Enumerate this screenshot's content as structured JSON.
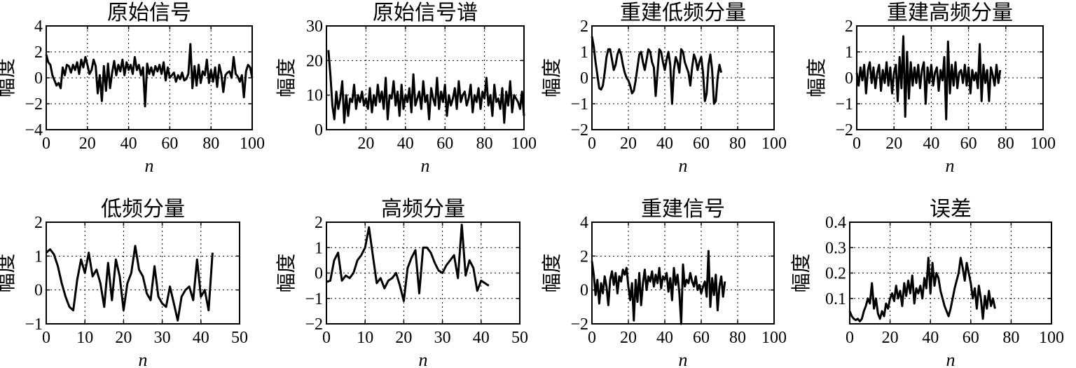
{
  "chart_data": [
    {
      "type": "line",
      "title": "原始信号",
      "xlabel": "n",
      "ylabel": "幅度",
      "xlim": [
        0,
        100
      ],
      "ylim": [
        -4,
        4
      ],
      "xticks": [
        "0",
        "20",
        "40",
        "60",
        "80",
        "100"
      ],
      "yticks": [
        "4",
        "2",
        "0",
        "−2",
        "−4"
      ],
      "grid": true,
      "x_start": 0,
      "values": [
        1.8,
        1.2,
        1.0,
        0.2,
        -0.2,
        -0.6,
        -0.4,
        -0.8,
        0.8,
        0.2,
        1.0,
        0.9,
        0.4,
        1.0,
        0.6,
        1.2,
        0.3,
        1.4,
        0.8,
        1.6,
        1.0,
        0.3,
        0.6,
        1.4,
        0.9,
        -1.2,
        0.2,
        -1.8,
        0.9,
        -1.0,
        1.1,
        -0.8,
        0.4,
        1.3,
        0.2,
        1.0,
        0.5,
        1.4,
        0.2,
        1.2,
        0.6,
        1.0,
        0.3,
        1.6,
        0.6,
        1.0,
        0.2,
        0.8,
        -2.2,
        1.1,
        0.3,
        0.8,
        0.2,
        0.9,
        0.5,
        1.0,
        0.3,
        1.2,
        -0.2,
        0.8,
        0.0,
        0.2,
        0.4,
        -0.3,
        0.2,
        -0.1,
        0.4,
        -0.2,
        -0.1,
        0.3,
        2.6,
        -0.8,
        0.9,
        -0.6,
        1.0,
        -0.4,
        0.5,
        0.2,
        1.4,
        -0.4,
        0.6,
        -0.3,
        0.8,
        -0.7,
        1.0,
        0.3,
        -1.1,
        0.2,
        0.4,
        0.5,
        0.0,
        1.6,
        0.3,
        0.1,
        -0.3,
        0.2,
        -1.5,
        0.5,
        1.0,
        0.8,
        0.0
      ]
    },
    {
      "type": "line",
      "title": "原始信号谱",
      "xlabel": "n",
      "ylabel": "幅度",
      "xlim": [
        0,
        100
      ],
      "ylim": [
        0,
        30
      ],
      "xticks": [
        "20",
        "40",
        "60",
        "80",
        "100"
      ],
      "yticks": [
        "30",
        "20",
        "10",
        "0"
      ],
      "grid": true,
      "x_start": 1,
      "values": [
        23,
        16,
        7,
        3,
        11,
        6,
        9,
        14,
        2,
        10,
        4,
        9,
        8,
        13,
        6,
        10,
        8,
        11,
        7,
        9,
        6,
        12,
        5,
        10,
        7,
        13,
        8,
        11,
        6,
        15,
        3,
        10,
        9,
        14,
        7,
        11,
        4,
        13,
        6,
        10,
        8,
        12,
        5,
        16,
        7,
        9,
        11,
        6,
        14,
        8,
        10,
        3,
        12,
        9,
        7,
        15,
        6,
        11,
        8,
        13,
        4,
        10,
        7,
        9,
        12,
        6,
        14,
        8,
        10,
        11,
        7,
        9,
        13,
        5,
        10,
        8,
        12,
        6,
        11,
        9,
        15,
        7,
        10,
        4,
        13,
        8,
        9,
        6,
        12,
        2,
        11,
        7,
        14,
        5,
        10,
        9,
        8,
        6,
        11,
        4
      ]
    },
    {
      "type": "line",
      "title": "重建低频分量",
      "xlabel": "n",
      "ylabel": "幅度",
      "xlim": [
        0,
        100
      ],
      "ylim": [
        -2,
        2
      ],
      "xticks": [
        "0",
        "20",
        "40",
        "60",
        "80",
        "100"
      ],
      "yticks": [
        "2",
        "1",
        "0",
        "−1",
        "−2"
      ],
      "grid": true,
      "x_start": 0,
      "values": [
        1.6,
        1.2,
        0.6,
        0.1,
        -0.4,
        -0.45,
        -0.3,
        0.2,
        0.8,
        1.1,
        1.1,
        0.7,
        0.3,
        0.5,
        0.9,
        1.1,
        0.9,
        0.5,
        0.2,
        0.0,
        -0.1,
        -0.3,
        -0.6,
        -0.5,
        -0.1,
        0.4,
        0.9,
        1.0,
        0.6,
        0.3,
        0.7,
        1.1,
        1.0,
        0.6,
        0.4,
        -0.7,
        0.2,
        1.1,
        1.0,
        0.6,
        0.3,
        0.7,
        1.0,
        0.5,
        -1.0,
        0.3,
        0.8,
        0.6,
        0.2,
        1.1,
        1.0,
        0.6,
        0.4,
        0.2,
        -0.3,
        0.4,
        0.9,
        0.7,
        0.3,
        0.6,
        0.8,
        0.2,
        -0.9,
        -0.6,
        0.5,
        0.9,
        0.3,
        -1.0,
        -0.9,
        0.0,
        0.5,
        0.2
      ]
    },
    {
      "type": "line",
      "title": "重建高频分量",
      "xlabel": "n",
      "ylabel": "幅度",
      "xlim": [
        0,
        100
      ],
      "ylim": [
        -2,
        2
      ],
      "xticks": [
        "0",
        "20",
        "40",
        "60",
        "80",
        "100"
      ],
      "yticks": [
        "2",
        "1",
        "0",
        "−1",
        "−2"
      ],
      "grid": true,
      "x_start": 0,
      "values": [
        0.2,
        -0.3,
        0.4,
        -0.1,
        0.5,
        -0.6,
        0.3,
        0.6,
        -0.2,
        0.4,
        -0.4,
        0.2,
        0.5,
        -0.5,
        0.3,
        -0.2,
        0.6,
        -0.3,
        0.4,
        -0.6,
        0.2,
        0.5,
        -0.9,
        0.8,
        -0.4,
        1.6,
        -1.5,
        1.0,
        -0.8,
        0.6,
        -0.3,
        0.4,
        -0.2,
        0.5,
        -0.4,
        0.3,
        0.6,
        -1.0,
        0.4,
        -0.2,
        0.5,
        -0.3,
        0.2,
        0.4,
        -0.5,
        0.3,
        -0.1,
        0.8,
        -1.6,
        1.4,
        -0.6,
        0.5,
        -0.3,
        0.6,
        -0.4,
        0.2,
        0.3,
        -0.2,
        0.5,
        -0.3,
        0.4,
        -0.6,
        0.3,
        -0.1,
        0.2,
        -0.4,
        1.3,
        -0.9,
        0.5,
        -0.2,
        0.3,
        -0.9,
        0.4,
        0.1,
        -0.3,
        0.5,
        -0.2,
        0.3
      ]
    },
    {
      "type": "line",
      "title": "低频分量",
      "xlabel": "n",
      "ylabel": "幅度",
      "xlim": [
        0,
        50
      ],
      "ylim": [
        -1,
        2
      ],
      "xticks": [
        "0",
        "10",
        "20",
        "30",
        "40",
        "50"
      ],
      "yticks": [
        "2",
        "1",
        "0",
        "−1"
      ],
      "grid": true,
      "x_start": 0,
      "values": [
        1.1,
        1.2,
        1.05,
        0.7,
        0.2,
        -0.2,
        -0.5,
        -0.6,
        0.3,
        0.9,
        0.5,
        1.1,
        0.4,
        0.6,
        0.2,
        -0.5,
        0.8,
        -0.3,
        0.9,
        0.4,
        -0.6,
        0.2,
        0.5,
        1.3,
        0.6,
        0.4,
        -0.1,
        -0.3,
        0.7,
        -0.2,
        -0.4,
        -0.5,
        0.1,
        -0.4,
        -0.9,
        -0.2,
        0.0,
        0.1,
        -0.3,
        0.9,
        -0.2,
        0.0,
        -0.6,
        1.1
      ]
    },
    {
      "type": "line",
      "title": "高频分量",
      "xlabel": "n",
      "ylabel": "幅度",
      "xlim": [
        0,
        50
      ],
      "ylim": [
        -2,
        2
      ],
      "xticks": [
        "0",
        "10",
        "20",
        "30",
        "40",
        "50"
      ],
      "yticks": [
        "2",
        "1",
        "0",
        "−1",
        "−2"
      ],
      "grid": true,
      "x_start": 0,
      "values": [
        -0.35,
        -0.3,
        0.5,
        0.8,
        -0.3,
        -0.1,
        -0.2,
        0.0,
        0.5,
        0.7,
        1.0,
        1.8,
        0.7,
        -0.4,
        -0.2,
        -0.6,
        -0.3,
        -0.2,
        0.0,
        -0.5,
        -1.1,
        0.2,
        0.6,
        0.9,
        -0.8,
        1.0,
        1.0,
        0.8,
        0.4,
        0.1,
        0.0,
        0.3,
        0.5,
        0.7,
        -0.2,
        1.9,
        -0.1,
        0.5,
        0.2,
        -0.7,
        -0.3,
        -0.4,
        -0.5
      ]
    },
    {
      "type": "line",
      "title": "重建信号",
      "xlabel": "n",
      "ylabel": "幅度",
      "xlim": [
        0,
        100
      ],
      "ylim": [
        -2,
        4
      ],
      "xticks": [
        "0",
        "20",
        "40",
        "60",
        "80",
        "100"
      ],
      "yticks": [
        "4",
        "2",
        "0",
        "−2"
      ],
      "grid": true,
      "x_start": 0,
      "values": [
        1.7,
        0.9,
        -0.3,
        0.6,
        -0.8,
        0.4,
        -0.2,
        0.8,
        0.2,
        -0.9,
        0.6,
        1.1,
        0.3,
        1.0,
        -0.2,
        0.8,
        0.5,
        1.2,
        0.9,
        1.3,
        0.2,
        -0.6,
        0.4,
        -1.8,
        0.6,
        -0.7,
        1.0,
        -0.9,
        0.4,
        1.2,
        0.0,
        0.8,
        0.5,
        1.1,
        0.2,
        0.9,
        0.4,
        1.3,
        0.1,
        0.8,
        0.6,
        1.0,
        -0.1,
        0.7,
        -0.6,
        1.3,
        0.3,
        0.9,
        -0.2,
        -2.0,
        1.5,
        0.2,
        0.6,
        0.4,
        1.0,
        0.5,
        0.2,
        0.8,
        0.0,
        0.3,
        -0.2,
        0.2,
        0.5,
        -0.4,
        2.3,
        -1.0,
        0.7,
        -0.3,
        0.9,
        -1.2,
        0.2,
        0.8,
        -0.4,
        0.5
      ]
    },
    {
      "type": "line",
      "title": "误差",
      "xlabel": "n",
      "ylabel": "幅度",
      "xlim": [
        0,
        100
      ],
      "ylim": [
        0,
        0.4
      ],
      "xticks": [
        "0",
        "20",
        "40",
        "60",
        "80",
        "100"
      ],
      "yticks": [
        "0.4",
        "0.3",
        "0.2",
        "0.1"
      ],
      "grid": true,
      "x_start": 0,
      "values": [
        0.05,
        0.03,
        0.02,
        0.015,
        0.02,
        0.01,
        0.02,
        0.05,
        0.07,
        0.1,
        0.08,
        0.16,
        0.06,
        0.1,
        0.04,
        0.02,
        0.05,
        0.03,
        0.08,
        0.06,
        0.1,
        0.12,
        0.09,
        0.15,
        0.1,
        0.13,
        0.07,
        0.16,
        0.11,
        0.17,
        0.12,
        0.19,
        0.08,
        0.14,
        0.12,
        0.15,
        0.1,
        0.18,
        0.14,
        0.26,
        0.12,
        0.24,
        0.15,
        0.2,
        0.18,
        0.13,
        0.1,
        0.07,
        0.05,
        0.03,
        0.06,
        0.1,
        0.14,
        0.17,
        0.2,
        0.26,
        0.22,
        0.17,
        0.24,
        0.2,
        0.16,
        0.1,
        0.14,
        0.06,
        0.15,
        0.1,
        0.02,
        0.11,
        0.06,
        0.13,
        0.07,
        0.1,
        0.06
      ]
    }
  ]
}
